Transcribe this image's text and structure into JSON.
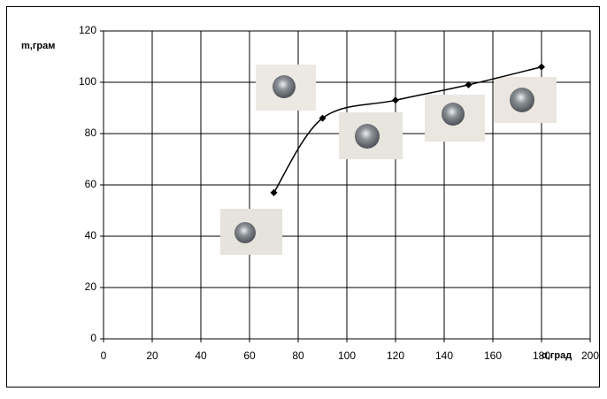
{
  "chart_data": {
    "type": "scatter-smooth",
    "y_label": "m,грам",
    "x_label": "α,град",
    "x": [
      70,
      90,
      120,
      150,
      180
    ],
    "series": [
      {
        "color": "#000000",
        "values": [
          57,
          86,
          93,
          99,
          106
        ]
      }
    ],
    "xlim": [
      0,
      200
    ],
    "xticks": [
      0,
      20,
      40,
      60,
      80,
      100,
      120,
      140,
      160,
      180,
      200
    ],
    "ylim": [
      0,
      120
    ],
    "yticks": [
      0,
      20,
      40,
      60,
      80,
      100,
      120
    ],
    "grid": true
  }
}
